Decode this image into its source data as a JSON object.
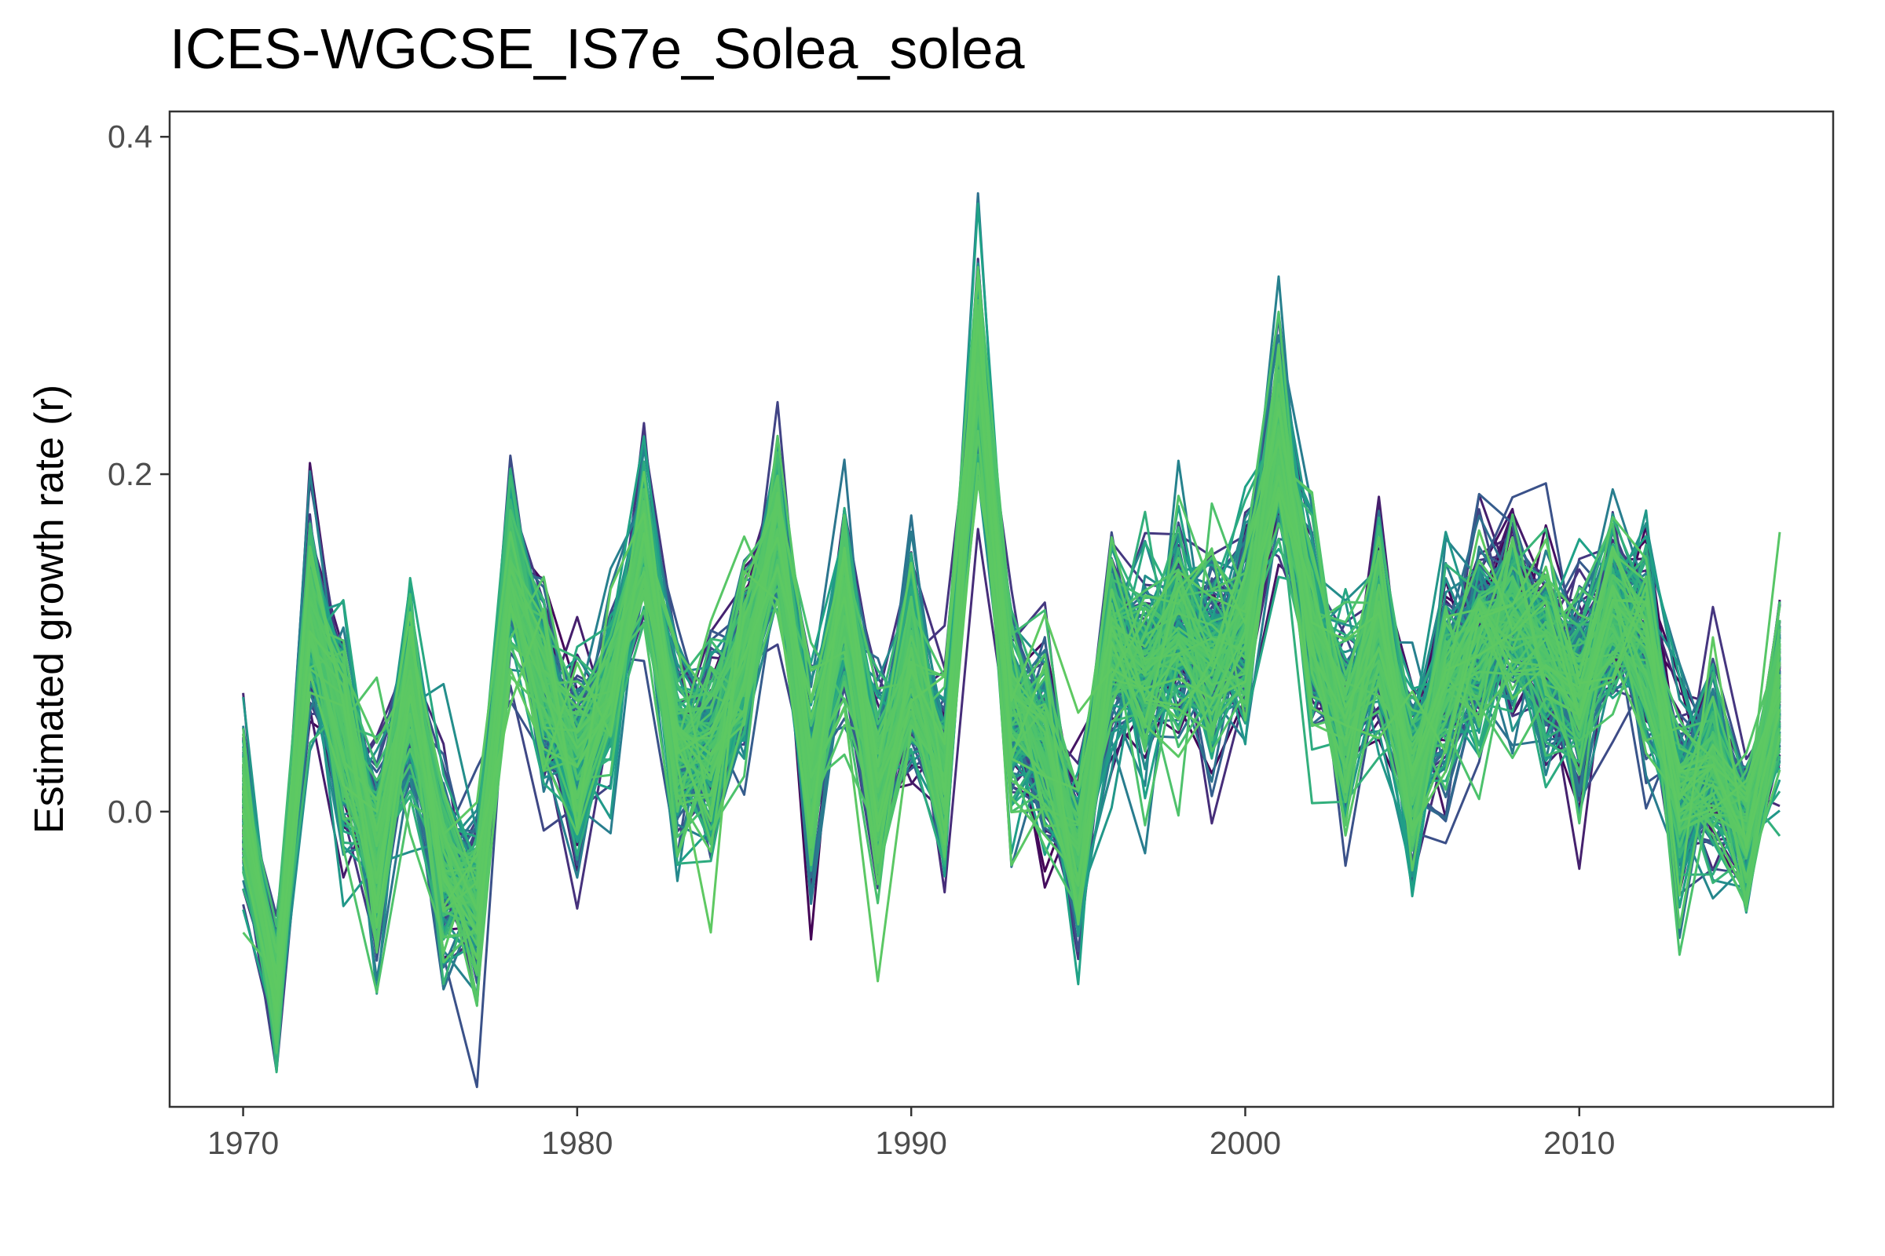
{
  "chart_data": {
    "type": "line",
    "title": "ICES-WGCSE_IS7e_Solea_solea",
    "xlabel": "",
    "ylabel": "Estimated growth rate (r)",
    "xlim": [
      1967.8,
      2017.6
    ],
    "ylim": [
      -0.175,
      0.415
    ],
    "x_ticks": [
      1970,
      1980,
      1990,
      2000,
      2010
    ],
    "x_tick_labels": [
      "1970",
      "1980",
      "1990",
      "2000",
      "2010"
    ],
    "y_ticks": [
      0.0,
      0.2,
      0.4
    ],
    "y_tick_labels": [
      "0.0",
      "0.2",
      "0.4"
    ],
    "grid": false,
    "legend": "none",
    "colormap": [
      "#440154",
      "#46337e",
      "#365c8d",
      "#277f8e",
      "#1fa187",
      "#4ac16d",
      "#5ec962"
    ],
    "x": [
      1970,
      1971,
      1972,
      1973,
      1974,
      1975,
      1976,
      1977,
      1978,
      1979,
      1980,
      1981,
      1982,
      1983,
      1984,
      1985,
      1986,
      1987,
      1988,
      1989,
      1990,
      1991,
      1992,
      1993,
      1994,
      1995,
      1996,
      1997,
      1998,
      1999,
      2000,
      2001,
      2002,
      2003,
      2004,
      2005,
      2006,
      2007,
      2008,
      2009,
      2010,
      2011,
      2012,
      2013,
      2014,
      2015,
      2016
    ],
    "mean": [
      0.0,
      -0.11,
      0.12,
      0.05,
      -0.02,
      0.07,
      -0.03,
      -0.05,
      0.15,
      0.07,
      0.03,
      0.07,
      0.16,
      0.04,
      0.04,
      0.09,
      0.17,
      0.02,
      0.13,
      0.01,
      0.09,
      0.02,
      0.27,
      0.06,
      0.04,
      -0.03,
      0.1,
      0.08,
      0.11,
      0.09,
      0.11,
      0.22,
      0.11,
      0.05,
      0.11,
      0.02,
      0.08,
      0.1,
      0.12,
      0.09,
      0.07,
      0.12,
      0.1,
      0.01,
      0.03,
      -0.01,
      0.07
    ],
    "spread": [
      0.04,
      0.03,
      0.05,
      0.05,
      0.05,
      0.05,
      0.05,
      0.04,
      0.05,
      0.05,
      0.05,
      0.04,
      0.04,
      0.05,
      0.05,
      0.05,
      0.04,
      0.05,
      0.05,
      0.05,
      0.05,
      0.05,
      0.05,
      0.05,
      0.05,
      0.04,
      0.05,
      0.05,
      0.05,
      0.05,
      0.05,
      0.05,
      0.05,
      0.05,
      0.05,
      0.05,
      0.05,
      0.05,
      0.05,
      0.05,
      0.05,
      0.05,
      0.05,
      0.05,
      0.05,
      0.04,
      0.05
    ],
    "n_series": 220
  }
}
